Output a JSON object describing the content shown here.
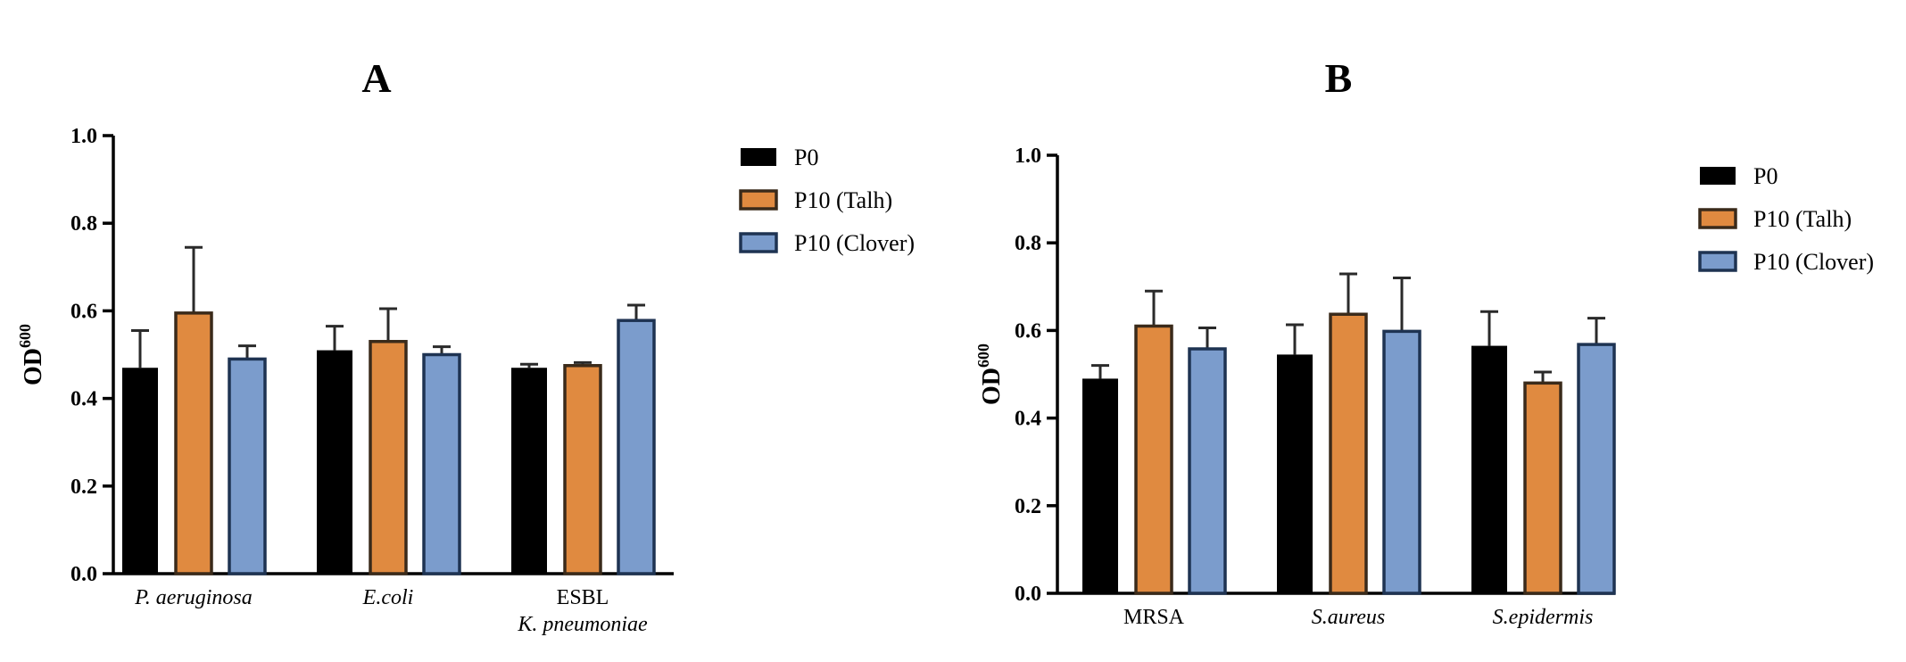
{
  "chart_data": [
    {
      "type": "bar",
      "panel_label": "A",
      "ylabel_main": "OD",
      "ylabel_sup": "600",
      "ylim": [
        0,
        1.0
      ],
      "y_ticks": [
        "0.0",
        "0.2",
        "0.4",
        "0.6",
        "0.8",
        "1.0"
      ],
      "categories": [
        {
          "lines": [
            "P. aeruginosa"
          ],
          "italic": [
            true
          ]
        },
        {
          "lines": [
            "E.coli"
          ],
          "italic": [
            true
          ]
        },
        {
          "lines": [
            "ESBL",
            "K. pneumoniae"
          ],
          "italic": [
            false,
            true
          ]
        }
      ],
      "series": [
        {
          "name": "P0",
          "color": "#000000",
          "values": [
            0.47,
            0.51,
            0.47
          ],
          "errors": [
            0.085,
            0.055,
            0.008
          ]
        },
        {
          "name": "P10 (Talh)",
          "color": "#e08a40",
          "values": [
            0.595,
            0.53,
            0.475
          ],
          "errors": [
            0.15,
            0.075,
            0.007
          ]
        },
        {
          "name": "P10 (Clover)",
          "color": "#7b9ccc",
          "values": [
            0.49,
            0.5,
            0.578
          ],
          "errors": [
            0.03,
            0.018,
            0.035
          ]
        }
      ],
      "legend_position": "right"
    },
    {
      "type": "bar",
      "panel_label": "B",
      "ylabel_main": "OD",
      "ylabel_sup": "600",
      "ylim": [
        0,
        1.0
      ],
      "y_ticks": [
        "0.0",
        "0.2",
        "0.4",
        "0.6",
        "0.8",
        "1.0"
      ],
      "categories": [
        {
          "lines": [
            "MRSA"
          ],
          "italic": [
            false
          ]
        },
        {
          "lines": [
            "S.aureus"
          ],
          "italic": [
            true
          ]
        },
        {
          "lines": [
            "S.epidermis"
          ],
          "italic": [
            true
          ]
        }
      ],
      "series": [
        {
          "name": "P0",
          "color": "#000000",
          "values": [
            0.49,
            0.545,
            0.565
          ],
          "errors": [
            0.03,
            0.068,
            0.078
          ]
        },
        {
          "name": "P10 (Talh)",
          "color": "#e08a40",
          "values": [
            0.61,
            0.637,
            0.48
          ],
          "errors": [
            0.08,
            0.092,
            0.025
          ]
        },
        {
          "name": "P10 (Clover)",
          "color": "#7b9ccc",
          "values": [
            0.558,
            0.598,
            0.568
          ],
          "errors": [
            0.048,
            0.122,
            0.06
          ]
        }
      ],
      "legend_position": "right"
    }
  ]
}
